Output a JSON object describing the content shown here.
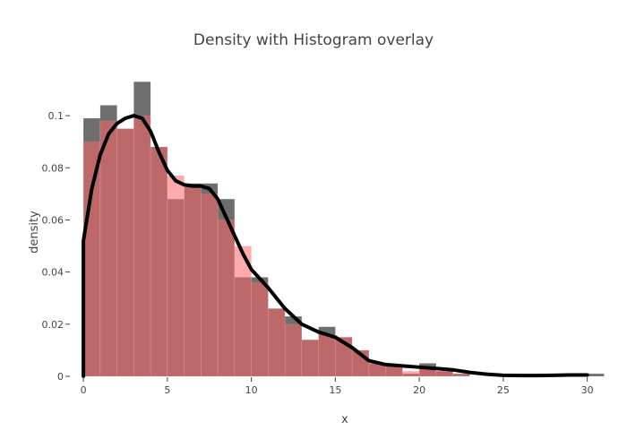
{
  "chart_data": {
    "type": "bar",
    "title": "Density with Histogram overlay",
    "xlabel": "x",
    "ylabel": "density",
    "xlim": [
      -0.7,
      31.3
    ],
    "ylim": [
      0,
      0.11
    ],
    "grid": false,
    "x_ticks": [
      0,
      5,
      10,
      15,
      20,
      25,
      30
    ],
    "y_ticks": [
      0,
      0.02,
      0.04,
      0.06,
      0.08,
      0.1
    ],
    "y_tick_labels": [
      "0",
      "0.02",
      "0.04",
      "0.06",
      "0.08",
      "0.1"
    ],
    "bin_width": 1,
    "bin_starts": [
      0,
      1,
      2,
      3,
      4,
      5,
      6,
      7,
      8,
      9,
      10,
      11,
      12,
      13,
      14,
      15,
      16,
      17,
      18,
      19,
      20,
      21,
      22,
      23,
      24,
      25,
      26,
      27,
      28,
      29,
      30
    ],
    "series": [
      {
        "type": "bar",
        "color": "#555555",
        "opacity": 0.85,
        "values": [
          0.099,
          0.104,
          0.095,
          0.113,
          0.088,
          0.068,
          0.074,
          0.074,
          0.068,
          0.038,
          0.038,
          0.026,
          0.023,
          0.014,
          0.019,
          0.015,
          0.01,
          0.005,
          0.004,
          0.001,
          0.005,
          0.002,
          0.001,
          0.0,
          0.0,
          0.0,
          0.0,
          0.0,
          0.001,
          0.0,
          0.001
        ]
      },
      {
        "type": "bar",
        "color": "#ff6666",
        "opacity": 0.55,
        "values": [
          0.09,
          0.098,
          0.095,
          0.1,
          0.088,
          0.077,
          0.073,
          0.07,
          0.06,
          0.05,
          0.036,
          0.026,
          0.02,
          0.014,
          0.016,
          0.015,
          0.01,
          0.005,
          0.004,
          0.002,
          0.003,
          0.002,
          0.001,
          0.0,
          0.0,
          0.0,
          0.0,
          0.0,
          0.0,
          0.0,
          0.0
        ]
      },
      {
        "type": "line",
        "color": "#000000",
        "x": [
          0,
          0.5,
          1,
          1.5,
          2,
          2.5,
          3,
          3.5,
          4,
          4.5,
          5,
          5.5,
          6,
          6.5,
          7,
          7.5,
          8,
          8.5,
          9,
          9.5,
          10,
          11,
          12,
          13,
          14,
          15,
          16,
          17,
          18,
          19,
          20,
          21,
          22,
          23,
          24,
          25,
          26,
          27,
          28,
          29,
          30
        ],
        "y": [
          0.052,
          0.072,
          0.085,
          0.093,
          0.097,
          0.099,
          0.1,
          0.099,
          0.094,
          0.086,
          0.079,
          0.075,
          0.0735,
          0.073,
          0.073,
          0.072,
          0.068,
          0.061,
          0.054,
          0.047,
          0.041,
          0.034,
          0.026,
          0.02,
          0.017,
          0.015,
          0.011,
          0.006,
          0.0045,
          0.004,
          0.0035,
          0.003,
          0.0025,
          0.0015,
          0.0008,
          0.0004,
          0.0003,
          0.0003,
          0.0004,
          0.0005,
          0.0005
        ]
      }
    ]
  }
}
